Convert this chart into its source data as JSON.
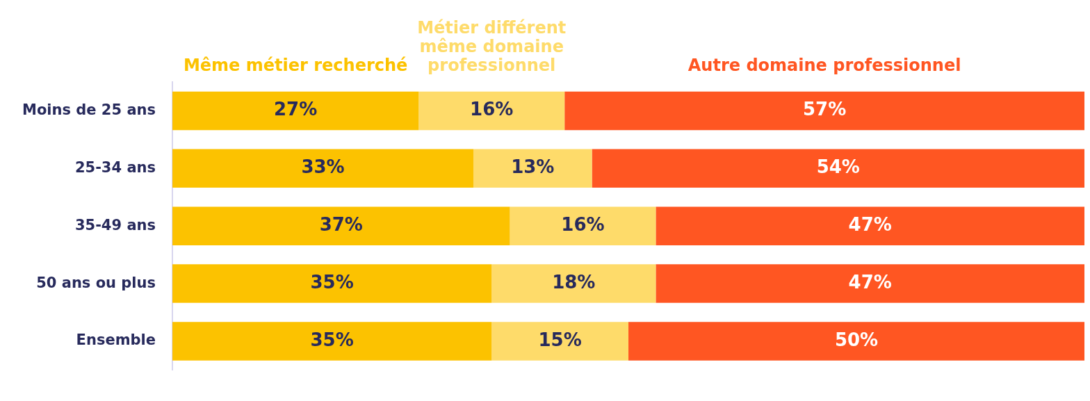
{
  "chart_data": {
    "type": "bar",
    "orientation": "horizontal",
    "stacked": true,
    "categories": [
      "Moins de 25 ans",
      "25-34 ans",
      "35-49 ans",
      "50 ans ou plus",
      "Ensemble"
    ],
    "series": [
      {
        "name": "Même métier recherché",
        "color": "#fcc200",
        "values": [
          27,
          33,
          37,
          35,
          35
        ],
        "value_labels": [
          "27%",
          "33%",
          "37%",
          "35%",
          "35%"
        ]
      },
      {
        "name": "Métier différent même domaine professionnel",
        "color": "#fedb6a",
        "values": [
          16,
          13,
          16,
          18,
          15
        ],
        "value_labels": [
          "16%",
          "13%",
          "16%",
          "18%",
          "15%"
        ]
      },
      {
        "name": "Autre domaine professionnel",
        "color": "#ff5622",
        "values": [
          57,
          54,
          47,
          47,
          50
        ],
        "value_labels": [
          "57%",
          "54%",
          "47%",
          "47%",
          "50%"
        ]
      }
    ],
    "xlim": [
      0,
      100
    ],
    "tick_labels": "y",
    "grid": false,
    "legend": "top"
  }
}
